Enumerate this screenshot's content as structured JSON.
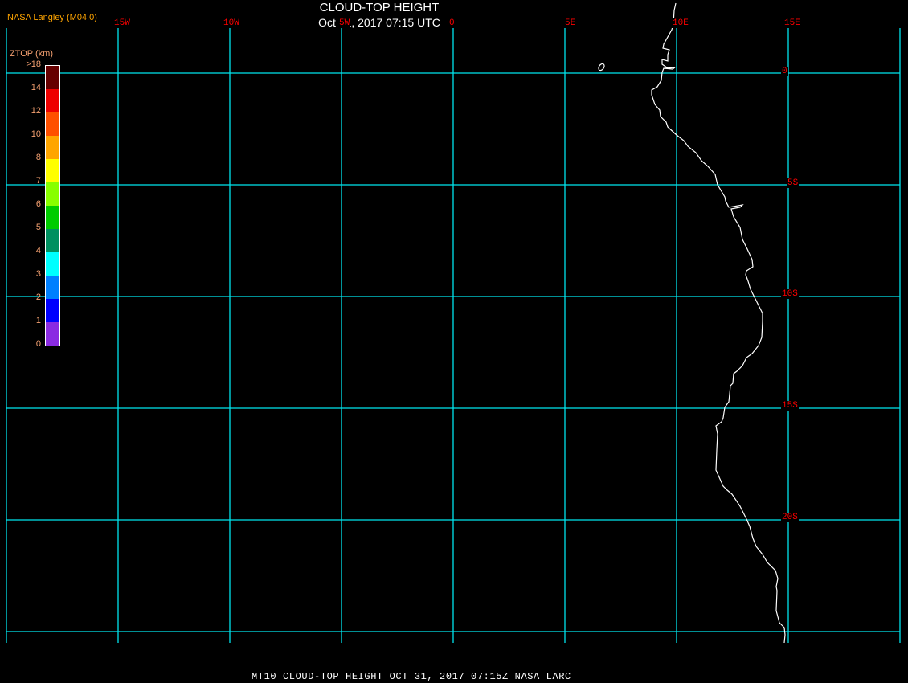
{
  "header": {
    "title": "CLOUD-TOP HEIGHT",
    "subtitle": "Oct 31, 2017 07:15 UTC",
    "credit": "NASA Langley (M04.0)"
  },
  "footer": "MT10  CLOUD-TOP HEIGHT   OCT 31, 2017 07:15Z   NASA LARC",
  "map": {
    "longitude_labels": [
      "15W",
      "10W",
      "5W",
      "0",
      "5E",
      "10E",
      "15E"
    ],
    "latitude_labels": [
      "0",
      "5S",
      "10S",
      "15S",
      "20S"
    ],
    "extent": {
      "lon": [
        -20,
        20
      ],
      "lat": [
        2,
        -25
      ]
    },
    "gridline_color": "#00e5ee",
    "coastline_color": "#ffffff",
    "label_color": "#ff0000"
  },
  "colorbar": {
    "title": "ZTOP (km)",
    "labels": [
      ">18",
      "14",
      "12",
      "10",
      "8",
      "7",
      "6",
      "5",
      "4",
      "3",
      "2",
      "1",
      "0"
    ],
    "colors": [
      "#660000",
      "#ee0000",
      "#ff5000",
      "#ffa500",
      "#ffff00",
      "#88ff00",
      "#00cc00",
      "#009060",
      "#00ffff",
      "#0080ff",
      "#0000ff",
      "#8a2be2"
    ]
  }
}
